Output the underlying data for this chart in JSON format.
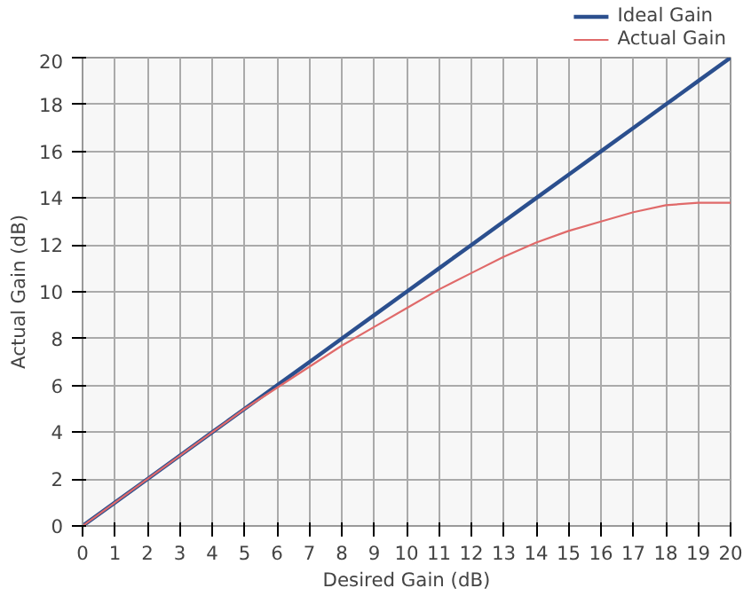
{
  "chart_data": {
    "type": "line",
    "xlabel": "Desired Gain (dB)",
    "ylabel": "Actual Gain (dB)",
    "x": [
      0,
      1,
      2,
      3,
      4,
      5,
      6,
      7,
      8,
      9,
      10,
      11,
      12,
      13,
      14,
      15,
      16,
      17,
      18,
      19,
      20
    ],
    "series": [
      {
        "name": "Ideal Gain",
        "color": "#2b4f8e",
        "values": [
          0,
          1,
          2,
          3,
          4,
          5,
          6,
          7,
          8,
          9,
          10,
          11,
          12,
          13,
          14,
          15,
          16,
          17,
          18,
          19,
          20
        ]
      },
      {
        "name": "Actual Gain",
        "color": "#e06a6a",
        "values": [
          0,
          1,
          2,
          3,
          4,
          5,
          5.9,
          6.8,
          7.7,
          8.5,
          9.3,
          10.1,
          10.8,
          11.5,
          12.1,
          12.6,
          13.0,
          13.4,
          13.7,
          13.8,
          13.8
        ]
      }
    ],
    "xlim": [
      0,
      20
    ],
    "ylim": [
      0,
      20
    ],
    "xticks": [
      0,
      1,
      2,
      3,
      4,
      5,
      6,
      7,
      8,
      9,
      10,
      11,
      12,
      13,
      14,
      15,
      16,
      17,
      18,
      19,
      20
    ],
    "yticks": [
      0,
      2,
      4,
      6,
      8,
      10,
      12,
      14,
      16,
      18,
      20
    ],
    "grid": true,
    "legend": "top right",
    "marker": "none",
    "line_style": "solid"
  }
}
